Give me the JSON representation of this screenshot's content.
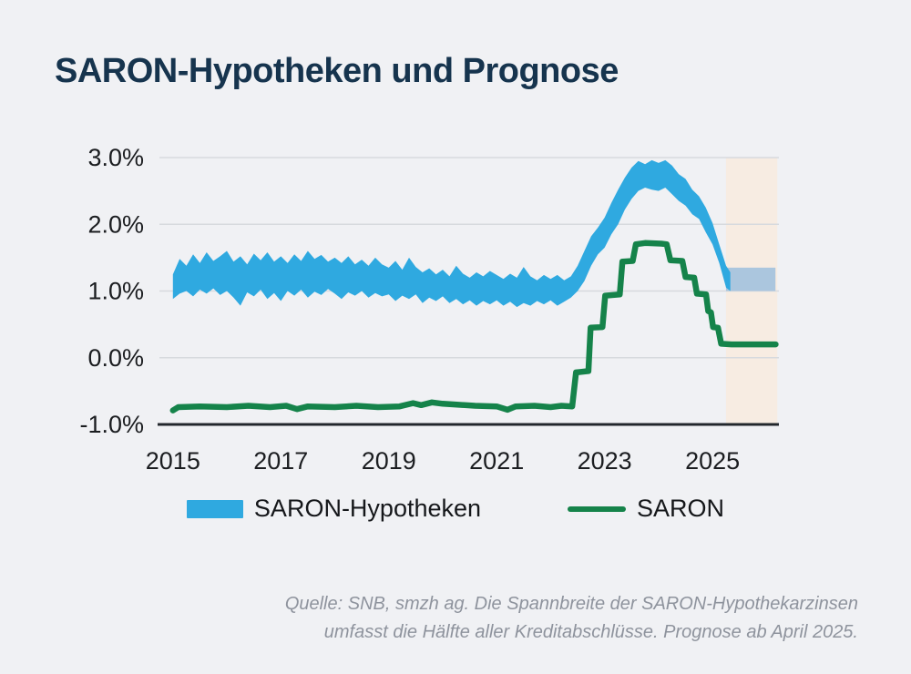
{
  "header": {
    "title": "SARON-Hypotheken und Prognose"
  },
  "source": {
    "line1": "Quelle: SNB, smzh ag. Die Spannbreite der SARON-Hypothekarzinsen",
    "line2": "umfasst die Hälfte aller Kreditabschlüsse. Prognose ab April 2025."
  },
  "legend": {
    "items": [
      {
        "label": "SARON-Hypotheken",
        "type": "band",
        "color": "#2FA9E0"
      },
      {
        "label": "SARON",
        "type": "line",
        "color": "#15834A"
      }
    ]
  },
  "chart_data": {
    "type": "area",
    "title": "SARON-Hypotheken und Prognose",
    "xlabel": "",
    "ylabel": "",
    "xlim": [
      2014.75,
      2026.23
    ],
    "ylim": [
      -1.0,
      3.0
    ],
    "grid": true,
    "legend_position": "bottom",
    "x_ticks": [
      2015,
      2017,
      2019,
      2021,
      2023,
      2025
    ],
    "y_ticks": [
      {
        "value": 3.0,
        "label": "3.0%"
      },
      {
        "value": 2.0,
        "label": "2.0%"
      },
      {
        "value": 1.0,
        "label": "1.0%"
      },
      {
        "value": 0.0,
        "label": "0.0%"
      },
      {
        "value": -1.0,
        "label": "-1.0%"
      }
    ],
    "colors": {
      "band": "#2FA9E0",
      "line": "#15834A",
      "grid": "#d7dade",
      "axis": "#22272c",
      "forecast_bg": "#F7ECE2",
      "forecast_band": "#ABC6DE"
    },
    "forecast": {
      "x_start": 2025.25,
      "x_end": 2026.2,
      "background": "#F7ECE2",
      "band_low": 1.0,
      "band_high": 1.35,
      "band_color": "#ABC6DE",
      "note": "Prognose ab April 2025"
    },
    "series": [
      {
        "name": "SARON-Hypotheken",
        "type": "band",
        "color": "#2FA9E0",
        "points": [
          [
            2015.0,
            0.88,
            1.25
          ],
          [
            2015.125,
            0.96,
            1.48
          ],
          [
            2015.25,
            1.0,
            1.38
          ],
          [
            2015.375,
            0.92,
            1.55
          ],
          [
            2015.5,
            1.02,
            1.42
          ],
          [
            2015.625,
            0.96,
            1.58
          ],
          [
            2015.75,
            1.04,
            1.45
          ],
          [
            2015.875,
            0.94,
            1.52
          ],
          [
            2016.0,
            1.0,
            1.6
          ],
          [
            2016.125,
            0.9,
            1.44
          ],
          [
            2016.25,
            0.78,
            1.52
          ],
          [
            2016.375,
            0.98,
            1.4
          ],
          [
            2016.5,
            0.92,
            1.56
          ],
          [
            2016.625,
            1.02,
            1.46
          ],
          [
            2016.75,
            0.88,
            1.58
          ],
          [
            2016.875,
            0.97,
            1.44
          ],
          [
            2017.0,
            0.85,
            1.52
          ],
          [
            2017.125,
            1.0,
            1.42
          ],
          [
            2017.25,
            0.93,
            1.55
          ],
          [
            2017.375,
            1.02,
            1.45
          ],
          [
            2017.5,
            0.9,
            1.6
          ],
          [
            2017.625,
            0.99,
            1.48
          ],
          [
            2017.75,
            0.94,
            1.54
          ],
          [
            2017.875,
            1.03,
            1.44
          ],
          [
            2018.0,
            0.96,
            1.5
          ],
          [
            2018.125,
            0.88,
            1.42
          ],
          [
            2018.25,
            0.98,
            1.52
          ],
          [
            2018.375,
            0.93,
            1.4
          ],
          [
            2018.5,
            1.0,
            1.47
          ],
          [
            2018.625,
            0.9,
            1.38
          ],
          [
            2018.75,
            0.97,
            1.5
          ],
          [
            2018.875,
            0.92,
            1.4
          ],
          [
            2019.0,
            0.95,
            1.35
          ],
          [
            2019.125,
            0.85,
            1.45
          ],
          [
            2019.25,
            0.93,
            1.32
          ],
          [
            2019.375,
            0.88,
            1.5
          ],
          [
            2019.5,
            0.95,
            1.36
          ],
          [
            2019.625,
            0.82,
            1.28
          ],
          [
            2019.75,
            0.9,
            1.34
          ],
          [
            2019.875,
            0.85,
            1.25
          ],
          [
            2020.0,
            0.92,
            1.32
          ],
          [
            2020.125,
            0.82,
            1.22
          ],
          [
            2020.25,
            0.88,
            1.38
          ],
          [
            2020.375,
            0.8,
            1.26
          ],
          [
            2020.5,
            0.86,
            1.2
          ],
          [
            2020.625,
            0.78,
            1.28
          ],
          [
            2020.75,
            0.85,
            1.22
          ],
          [
            2020.875,
            0.8,
            1.3
          ],
          [
            2021.0,
            0.86,
            1.24
          ],
          [
            2021.125,
            0.78,
            1.18
          ],
          [
            2021.25,
            0.84,
            1.26
          ],
          [
            2021.375,
            0.76,
            1.2
          ],
          [
            2021.5,
            0.82,
            1.36
          ],
          [
            2021.625,
            0.78,
            1.22
          ],
          [
            2021.75,
            0.85,
            1.16
          ],
          [
            2021.875,
            0.8,
            1.24
          ],
          [
            2022.0,
            0.86,
            1.18
          ],
          [
            2022.125,
            0.78,
            1.24
          ],
          [
            2022.25,
            0.84,
            1.16
          ],
          [
            2022.375,
            0.9,
            1.22
          ],
          [
            2022.5,
            1.0,
            1.38
          ],
          [
            2022.625,
            1.15,
            1.6
          ],
          [
            2022.75,
            1.38,
            1.82
          ],
          [
            2022.875,
            1.55,
            1.95
          ],
          [
            2023.0,
            1.65,
            2.1
          ],
          [
            2023.125,
            1.85,
            2.32
          ],
          [
            2023.25,
            2.0,
            2.52
          ],
          [
            2023.375,
            2.22,
            2.7
          ],
          [
            2023.5,
            2.38,
            2.85
          ],
          [
            2023.625,
            2.5,
            2.95
          ],
          [
            2023.75,
            2.55,
            2.9
          ],
          [
            2023.875,
            2.52,
            2.96
          ],
          [
            2024.0,
            2.5,
            2.92
          ],
          [
            2024.125,
            2.55,
            2.96
          ],
          [
            2024.25,
            2.45,
            2.88
          ],
          [
            2024.375,
            2.35,
            2.75
          ],
          [
            2024.5,
            2.28,
            2.68
          ],
          [
            2024.625,
            2.15,
            2.52
          ],
          [
            2024.75,
            2.08,
            2.42
          ],
          [
            2024.875,
            1.88,
            2.25
          ],
          [
            2025.0,
            1.7,
            2.02
          ],
          [
            2025.125,
            1.42,
            1.7
          ],
          [
            2025.25,
            1.05,
            1.38
          ],
          [
            2025.33,
            1.0,
            1.28
          ]
        ]
      },
      {
        "name": "SARON",
        "type": "line",
        "color": "#15834A",
        "points": [
          [
            2015.0,
            -0.79
          ],
          [
            2015.1,
            -0.74
          ],
          [
            2015.5,
            -0.73
          ],
          [
            2016.0,
            -0.74
          ],
          [
            2016.4,
            -0.72
          ],
          [
            2016.8,
            -0.74
          ],
          [
            2017.1,
            -0.72
          ],
          [
            2017.3,
            -0.77
          ],
          [
            2017.5,
            -0.73
          ],
          [
            2018.0,
            -0.74
          ],
          [
            2018.4,
            -0.72
          ],
          [
            2018.8,
            -0.74
          ],
          [
            2019.2,
            -0.73
          ],
          [
            2019.45,
            -0.68
          ],
          [
            2019.6,
            -0.71
          ],
          [
            2019.8,
            -0.67
          ],
          [
            2020.0,
            -0.69
          ],
          [
            2020.2,
            -0.7
          ],
          [
            2020.6,
            -0.72
          ],
          [
            2021.0,
            -0.73
          ],
          [
            2021.2,
            -0.78
          ],
          [
            2021.35,
            -0.73
          ],
          [
            2021.7,
            -0.72
          ],
          [
            2022.0,
            -0.74
          ],
          [
            2022.2,
            -0.72
          ],
          [
            2022.4,
            -0.73
          ],
          [
            2022.47,
            -0.22
          ],
          [
            2022.7,
            -0.2
          ],
          [
            2022.74,
            0.45
          ],
          [
            2022.96,
            0.46
          ],
          [
            2023.01,
            0.93
          ],
          [
            2023.28,
            0.95
          ],
          [
            2023.33,
            1.44
          ],
          [
            2023.52,
            1.45
          ],
          [
            2023.58,
            1.7
          ],
          [
            2023.75,
            1.72
          ],
          [
            2024.05,
            1.71
          ],
          [
            2024.15,
            1.7
          ],
          [
            2024.22,
            1.46
          ],
          [
            2024.44,
            1.45
          ],
          [
            2024.5,
            1.21
          ],
          [
            2024.66,
            1.2
          ],
          [
            2024.71,
            0.96
          ],
          [
            2024.88,
            0.95
          ],
          [
            2024.92,
            0.7
          ],
          [
            2024.97,
            0.68
          ],
          [
            2025.01,
            0.46
          ],
          [
            2025.1,
            0.45
          ],
          [
            2025.16,
            0.21
          ],
          [
            2025.35,
            0.2
          ],
          [
            2026.17,
            0.2
          ]
        ]
      }
    ]
  }
}
